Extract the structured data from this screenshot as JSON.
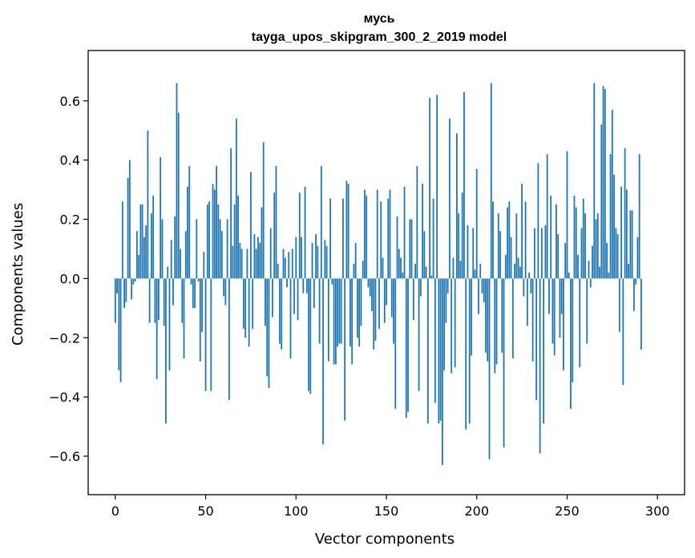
{
  "chart_data": {
    "type": "bar",
    "title": "мусь",
    "subtitle": "tayga_upos_skipgram_300_2_2019 model",
    "xlabel": "Vector components",
    "ylabel": "Components values",
    "xlim": [
      -15,
      315
    ],
    "ylim": [
      -0.73,
      0.77
    ],
    "xticks": [
      0,
      50,
      100,
      150,
      200,
      250,
      300
    ],
    "yticks": [
      -0.6,
      -0.4,
      -0.2,
      0.0,
      0.2,
      0.4,
      0.6
    ],
    "ytick_labels": [
      "−0.6",
      "−0.4",
      "−0.2",
      "0.0",
      "0.2",
      "0.4",
      "0.6"
    ],
    "color": "#1f77b4",
    "x_start": 0,
    "values": [
      -0.15,
      -0.05,
      -0.31,
      -0.35,
      0.26,
      -0.1,
      -0.08,
      0.34,
      0.4,
      -0.07,
      -0.02,
      -0.01,
      0.16,
      0.08,
      0.25,
      0.25,
      0.14,
      0.18,
      0.5,
      -0.15,
      0.22,
      0.28,
      -0.15,
      -0.34,
      -0.14,
      0.41,
      0.2,
      -0.16,
      -0.49,
      0.04,
      -0.31,
      0.13,
      -0.09,
      0.21,
      0.66,
      0.56,
      0.1,
      -0.15,
      -0.27,
      0.16,
      0.31,
      0.38,
      -0.02,
      -0.1,
      -0.1,
      0.2,
      -0.01,
      -0.28,
      -0.18,
      0.09,
      -0.38,
      0.25,
      0.26,
      -0.38,
      0.32,
      0.3,
      0.38,
      0.25,
      0.2,
      0.16,
      -0.06,
      -0.09,
      0.2,
      -0.41,
      0.44,
      0.11,
      0.25,
      0.54,
      0.28,
      0.12,
      0.1,
      -0.17,
      -0.2,
      0.1,
      -0.23,
      0.36,
      -0.17,
      0.15,
      0.1,
      0.14,
      0.12,
      0.24,
      0.46,
      -0.16,
      -0.33,
      -0.37,
      0.17,
      -0.13,
      0.29,
      0.38,
      0.05,
      -0.22,
      -0.24,
      0.1,
      0.07,
      -0.03,
      0.09,
      -0.27,
      0.1,
      -0.12,
      0.14,
      -0.14,
      0.29,
      0.14,
      -0.05,
      0.31,
      -0.05,
      -0.38,
      -0.39,
      0.12,
      -0.1,
      0.15,
      0.11,
      -0.22,
      0.38,
      -0.56,
      0.13,
      0.11,
      -0.28,
      0.27,
      -0.02,
      -0.29,
      -0.29,
      -0.23,
      -0.22,
      -0.22,
      0.27,
      -0.48,
      0.33,
      0.32,
      -0.23,
      -0.29,
      0.05,
      0.12,
      -0.2,
      -0.23,
      -0.16,
      0.06,
      0.3,
      0.28,
      -0.03,
      -0.06,
      -0.11,
      -0.24,
      -0.21,
      0.3,
      -0.17,
      0.26,
      0.07,
      -0.15,
      -0.09,
      0.27,
      0.3,
      -0.13,
      -0.22,
      -0.44,
      0.21,
      0.1,
      0.07,
      0.02,
      0.31,
      -0.47,
      -0.45,
      0.2,
      0.2,
      -0.14,
      0.05,
      0.38,
      -0.38,
      -0.06,
      0.32,
      0.16,
      0.04,
      -0.49,
      0.61,
      0.01,
      0.27,
      -0.42,
      0.62,
      -0.49,
      -0.48,
      -0.63,
      -0.31,
      -0.15,
      -0.05,
      0.54,
      -0.32,
      0.07,
      -0.3,
      0.49,
      0.22,
      0.06,
      0.29,
      0.63,
      -0.51,
      0.18,
      -0.49,
      -0.26,
      0.17,
      0.03,
      0.37,
      -0.12,
      0.05,
      -0.05,
      -0.08,
      -0.25,
      -0.28,
      -0.61,
      0.66,
      0.26,
      -0.32,
      -0.29,
      0.22,
      0.16,
      -0.25,
      -0.57,
      0.08,
      0.24,
      0.26,
      0.14,
      -0.27,
      0.05,
      0.22,
      0.07,
      0.04,
      0.32,
      -0.06,
      0.26,
      -0.16,
      0.02,
      -0.05,
      -0.28,
      0.17,
      -0.41,
      0.39,
      -0.59,
      0.17,
      -0.49,
      0.18,
      0.42,
      -0.12,
      0.28,
      -0.22,
      -0.26,
      0.25,
      0.15,
      -0.2,
      -0.12,
      -0.31,
      0.12,
      0.43,
      0.02,
      -0.44,
      -0.35,
      0.28,
      0.24,
      0.08,
      -0.3,
      0.17,
      0.27,
      0.22,
      -0.22,
      0.06,
      -0.03,
      0.11,
      0.66,
      0.2,
      0.22,
      0.04,
      0.52,
      0.65,
      0.64,
      0.12,
      0.02,
      0.42,
      0.57,
      0.35,
      0.17,
      0.15,
      -0.18,
      0.31,
      -0.36,
      0.44,
      0.3,
      0.05,
      0.23,
      0.23,
      -0.11,
      -0.02,
      0.14,
      0.42,
      -0.24
    ]
  }
}
